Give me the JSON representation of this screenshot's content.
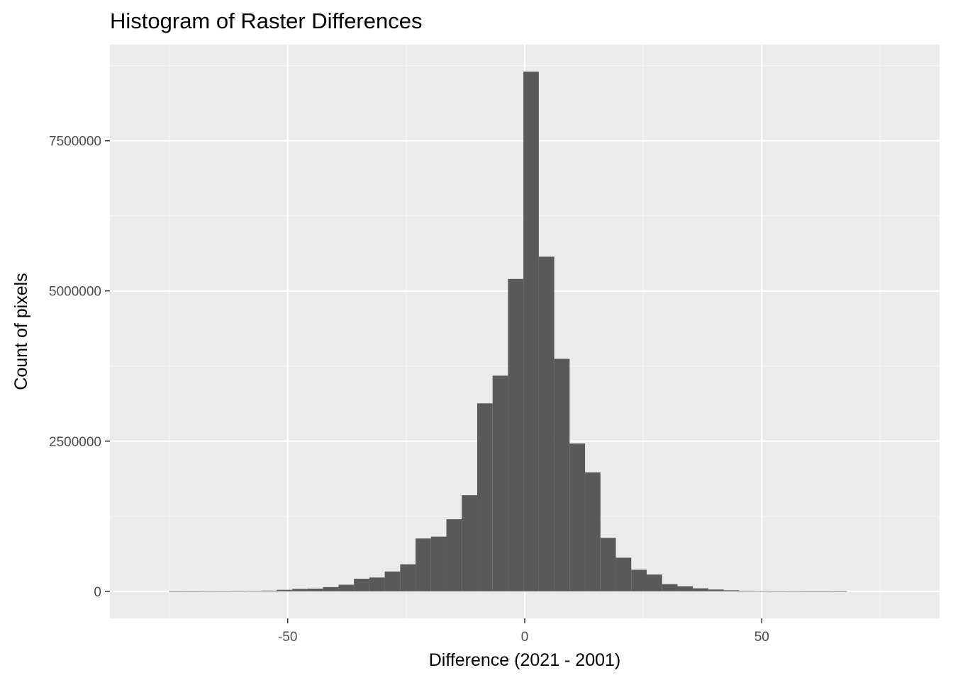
{
  "chart_data": {
    "type": "bar",
    "title": "Histogram of Raster Differences",
    "xlabel": "Difference (2021 - 2001)",
    "ylabel": "Count of pixels",
    "xlim": [
      -87.5,
      87.5
    ],
    "ylim": [
      -450000,
      9100000
    ],
    "x_ticks": [
      -50,
      0,
      50
    ],
    "x_tick_labels": [
      "-50",
      "0",
      "50"
    ],
    "y_ticks": [
      0,
      2500000,
      5000000,
      7500000
    ],
    "y_tick_labels": [
      "0",
      "2500000",
      "5000000",
      "7500000"
    ],
    "grid": true,
    "panel_background": "#ebebeb",
    "bar_color": "#595959",
    "bin_width": 3.25,
    "bins": [
      {
        "x": -73.4,
        "count": 3000
      },
      {
        "x": -70.15,
        "count": 3000
      },
      {
        "x": -66.9,
        "count": 4000
      },
      {
        "x": -63.65,
        "count": 5000
      },
      {
        "x": -60.4,
        "count": 6000
      },
      {
        "x": -57.15,
        "count": 8000
      },
      {
        "x": -53.9,
        "count": 12000
      },
      {
        "x": -50.65,
        "count": 25000
      },
      {
        "x": -47.4,
        "count": 40000
      },
      {
        "x": -44.15,
        "count": 45000
      },
      {
        "x": -40.9,
        "count": 70000
      },
      {
        "x": -37.65,
        "count": 110000
      },
      {
        "x": -34.4,
        "count": 210000
      },
      {
        "x": -31.15,
        "count": 230000
      },
      {
        "x": -27.9,
        "count": 330000
      },
      {
        "x": -24.65,
        "count": 450000
      },
      {
        "x": -21.4,
        "count": 880000
      },
      {
        "x": -18.15,
        "count": 910000
      },
      {
        "x": -14.9,
        "count": 1200000
      },
      {
        "x": -11.65,
        "count": 1600000
      },
      {
        "x": -8.4,
        "count": 3130000
      },
      {
        "x": -5.15,
        "count": 3590000
      },
      {
        "x": -1.9,
        "count": 5200000
      },
      {
        "x": 1.35,
        "count": 8650000
      },
      {
        "x": 4.6,
        "count": 5570000
      },
      {
        "x": 7.85,
        "count": 3870000
      },
      {
        "x": 11.1,
        "count": 2460000
      },
      {
        "x": 14.35,
        "count": 1980000
      },
      {
        "x": 17.6,
        "count": 890000
      },
      {
        "x": 20.85,
        "count": 560000
      },
      {
        "x": 24.1,
        "count": 360000
      },
      {
        "x": 27.35,
        "count": 280000
      },
      {
        "x": 30.6,
        "count": 120000
      },
      {
        "x": 33.85,
        "count": 85000
      },
      {
        "x": 37.1,
        "count": 50000
      },
      {
        "x": 40.35,
        "count": 30000
      },
      {
        "x": 43.6,
        "count": 18000
      },
      {
        "x": 46.85,
        "count": 10000
      },
      {
        "x": 50.1,
        "count": 7000
      },
      {
        "x": 53.35,
        "count": 5000
      },
      {
        "x": 56.6,
        "count": 4000
      },
      {
        "x": 59.85,
        "count": 3000
      },
      {
        "x": 63.1,
        "count": 3000
      },
      {
        "x": 66.35,
        "count": 2000
      }
    ]
  }
}
